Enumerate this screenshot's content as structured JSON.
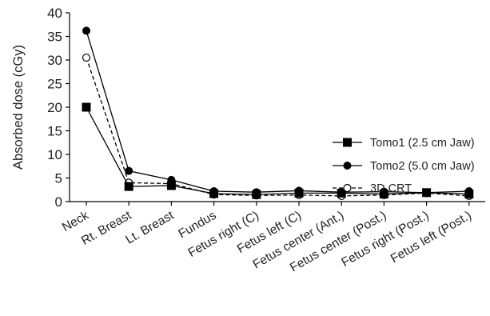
{
  "chart_data": {
    "type": "line",
    "title": "",
    "xlabel": "",
    "ylabel": "Absorbed dose (cGy)",
    "ylim": [
      0,
      40
    ],
    "yticks": [
      "0",
      "5",
      "10",
      "15",
      "20",
      "25",
      "30",
      "35",
      "40"
    ],
    "categories": [
      "Neck",
      "Rt. Breast",
      "Lt. Breast",
      "Fundus",
      "Fetus right (C)",
      "Fetus left (C)",
      "Fetus center (Ant.)",
      "Fetus center (Post.)",
      "Fetus right (Post.)",
      "Fetus left (Post.)"
    ],
    "grid": false,
    "legend_position": "right",
    "series": [
      {
        "name": "Tomo1 (2.5 cm Jaw)",
        "marker": "square-filled",
        "line": "solid",
        "color": "#000000",
        "values": [
          20.0,
          3.2,
          3.4,
          1.7,
          1.5,
          1.8,
          1.8,
          1.6,
          1.9,
          1.6
        ]
      },
      {
        "name": "Tomo2 (5.0 cm Jaw)",
        "marker": "circle-filled",
        "line": "solid",
        "color": "#000000",
        "values": [
          36.2,
          6.5,
          4.6,
          2.2,
          2.0,
          2.3,
          2.0,
          2.1,
          1.9,
          2.2
        ]
      },
      {
        "name": "3D CRT",
        "marker": "circle-open",
        "line": "dashed",
        "color": "#000000",
        "values": [
          30.5,
          4.0,
          3.8,
          1.5,
          1.3,
          1.4,
          1.2,
          1.4,
          1.8,
          1.2
        ]
      }
    ]
  }
}
